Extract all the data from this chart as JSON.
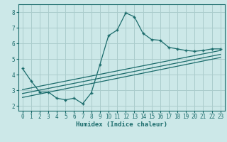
{
  "bg_color": "#cce8e8",
  "grid_color": "#aacccc",
  "line_color": "#1a6b6b",
  "marker_color": "#1a6b6b",
  "xlabel": "Humidex (Indice chaleur)",
  "xlim": [
    -0.5,
    23.5
  ],
  "ylim": [
    1.7,
    8.5
  ],
  "xticks": [
    0,
    1,
    2,
    3,
    4,
    5,
    6,
    7,
    8,
    9,
    10,
    11,
    12,
    13,
    14,
    15,
    16,
    17,
    18,
    19,
    20,
    21,
    22,
    23
  ],
  "yticks": [
    2,
    3,
    4,
    5,
    6,
    7,
    8
  ],
  "main_x": [
    0,
    1,
    2,
    3,
    4,
    5,
    6,
    7,
    8,
    9,
    10,
    11,
    12,
    13,
    14,
    15,
    16,
    17,
    18,
    19,
    20,
    21,
    22,
    23
  ],
  "main_y": [
    4.4,
    3.6,
    2.9,
    2.9,
    2.5,
    2.4,
    2.5,
    2.15,
    2.85,
    4.65,
    6.5,
    6.85,
    7.95,
    7.7,
    6.65,
    6.25,
    6.2,
    5.75,
    5.65,
    5.55,
    5.5,
    5.55,
    5.65,
    5.65
  ],
  "line1_x": [
    0,
    23
  ],
  "line1_y": [
    2.55,
    5.1
  ],
  "line2_x": [
    0,
    23
  ],
  "line2_y": [
    2.8,
    5.3
  ],
  "line3_x": [
    0,
    23
  ],
  "line3_y": [
    3.05,
    5.55
  ]
}
